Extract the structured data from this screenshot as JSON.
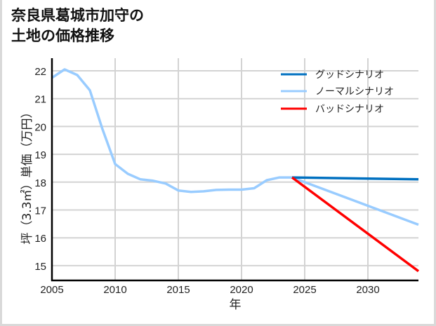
{
  "title": {
    "line1": "奈良県葛城市加守の",
    "line2": "土地の価格推移"
  },
  "chart_data": {
    "type": "line",
    "title": "奈良県葛城市加守の土地の価格推移",
    "xlabel": "年",
    "ylabel": "坪（3.3㎡）単価（万円）",
    "xlim": [
      2005,
      2034
    ],
    "ylim": [
      14.5,
      22.5
    ],
    "x_ticks": [
      2005,
      2010,
      2015,
      2020,
      2025,
      2030
    ],
    "y_ticks": [
      15,
      16,
      17,
      18,
      19,
      20,
      21,
      22
    ],
    "grid": true,
    "legend_position": "upper right",
    "series": [
      {
        "name": "グッドシナリオ",
        "color": "#0070c0",
        "x": [
          2024,
          2034
        ],
        "values": [
          18.17,
          18.1
        ]
      },
      {
        "name": "ノーマルシナリオ",
        "color": "#99ccff",
        "x": [
          2005,
          2006,
          2007,
          2008,
          2009,
          2010,
          2011,
          2012,
          2013,
          2014,
          2015,
          2016,
          2017,
          2018,
          2019,
          2020,
          2021,
          2022,
          2023,
          2024,
          2034
        ],
        "values": [
          21.75,
          22.05,
          21.85,
          21.3,
          19.9,
          18.65,
          18.3,
          18.1,
          18.05,
          17.95,
          17.7,
          17.65,
          17.67,
          17.72,
          17.73,
          17.73,
          17.78,
          18.07,
          18.17,
          18.17,
          16.47
        ]
      },
      {
        "name": "バッドシナリオ",
        "color": "#ff0000",
        "x": [
          2024,
          2034
        ],
        "values": [
          18.17,
          14.8
        ]
      }
    ]
  },
  "legend": {
    "good": "グッドシナリオ",
    "normal": "ノーマルシナリオ",
    "bad": "バッドシナリオ"
  },
  "axis": {
    "x_label": "年",
    "y_label": "坪（3.3㎡）単価（万円）",
    "x_ticks": [
      "2005",
      "2010",
      "2015",
      "2020",
      "2025",
      "2030"
    ],
    "y_ticks": [
      "22",
      "21",
      "20",
      "19",
      "18",
      "17",
      "16",
      "15"
    ]
  }
}
